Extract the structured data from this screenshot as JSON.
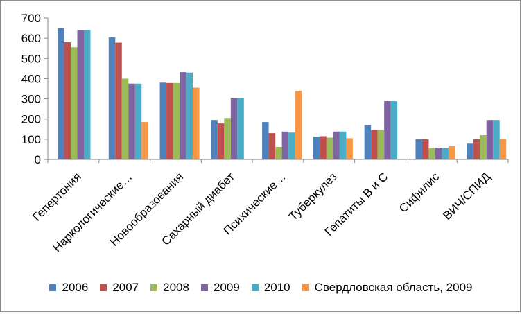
{
  "chart_data": {
    "type": "bar",
    "title": "",
    "xlabel": "",
    "ylabel": "",
    "ylim": [
      0,
      700
    ],
    "yticks": [
      0,
      100,
      200,
      300,
      400,
      500,
      600,
      700
    ],
    "grid": false,
    "legend_position": "bottom",
    "categories": [
      "Гепертония",
      "Наркологические…",
      "Новообразования",
      "Сахарный диабет",
      "Психические…",
      "Туберкулез",
      "Гепатиты В и С",
      "Сифилис",
      "ВИЧ/СПИД"
    ],
    "series": [
      {
        "name": "2006",
        "color": "#4f81bd",
        "values": [
          650,
          605,
          380,
          195,
          185,
          112,
          170,
          100,
          78
        ]
      },
      {
        "name": "2007",
        "color": "#c0504d",
        "values": [
          580,
          578,
          378,
          178,
          130,
          115,
          145,
          100,
          100
        ]
      },
      {
        "name": "2008",
        "color": "#9bbb59",
        "values": [
          555,
          400,
          378,
          205,
          62,
          108,
          145,
          55,
          120
        ]
      },
      {
        "name": "2009",
        "color": "#8064a2",
        "values": [
          640,
          375,
          432,
          305,
          138,
          138,
          288,
          58,
          195
        ]
      },
      {
        "name": "2010",
        "color": "#4bacc6",
        "values": [
          640,
          375,
          430,
          305,
          133,
          138,
          288,
          55,
          195
        ]
      },
      {
        "name": "Свердловская область, 2009",
        "color": "#f79646",
        "values": [
          null,
          185,
          355,
          null,
          340,
          105,
          null,
          65,
          102
        ]
      }
    ]
  }
}
